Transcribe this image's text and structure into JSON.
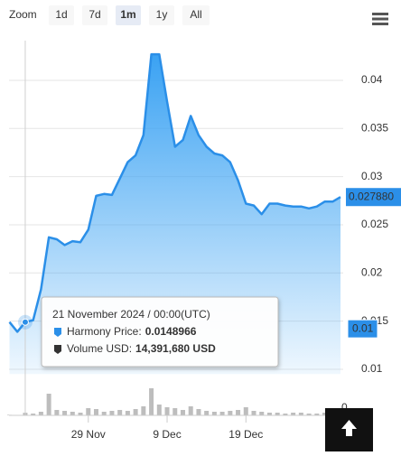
{
  "chart_data": {
    "type": "stock",
    "range_selector": {
      "label": "Zoom",
      "buttons": [
        "1d",
        "7d",
        "1m",
        "1y",
        "All"
      ],
      "selected": 2
    },
    "x": [
      "2024-11-19",
      "2024-11-20",
      "2024-11-21",
      "2024-11-22",
      "2024-11-23",
      "2024-11-24",
      "2024-11-25",
      "2024-11-26",
      "2024-11-27",
      "2024-11-28",
      "2024-11-29",
      "2024-11-30",
      "2024-12-01",
      "2024-12-02",
      "2024-12-03",
      "2024-12-04",
      "2024-12-05",
      "2024-12-06",
      "2024-12-07",
      "2024-12-08",
      "2024-12-09",
      "2024-12-10",
      "2024-12-11",
      "2024-12-12",
      "2024-12-13",
      "2024-12-14",
      "2024-12-15",
      "2024-12-16",
      "2024-12-17",
      "2024-12-18",
      "2024-12-19",
      "2024-12-20",
      "2024-12-21",
      "2024-12-22",
      "2024-12-23",
      "2024-12-24",
      "2024-12-25",
      "2024-12-26",
      "2024-12-27",
      "2024-12-28",
      "2024-12-29",
      "2024-12-30",
      "2024-12-31"
    ],
    "xlim": [
      "2024-11-19",
      "2024-12-31"
    ],
    "xticks": [
      {
        "value": "2024-11-29",
        "label": "29 Nov"
      },
      {
        "value": "2024-12-09",
        "label": "9 Dec"
      },
      {
        "value": "2024-12-19",
        "label": "19 Dec"
      }
    ],
    "series": [
      {
        "color": "#2b8fe8",
        "values": [
          0.0149,
          0.0139,
          0.0148966,
          0.0151,
          0.0183,
          0.0237,
          0.0235,
          0.0229,
          0.0233,
          0.0232,
          0.0245,
          0.028,
          0.0282,
          0.0281,
          0.0298,
          0.0315,
          0.0322,
          0.0343,
          0.0427,
          0.0427,
          0.0378,
          0.0331,
          0.0338,
          0.0363,
          0.0343,
          0.0331,
          0.0324,
          0.0322,
          0.0315,
          0.0296,
          0.0272,
          0.027,
          0.0261,
          0.0272,
          0.0272,
          0.027,
          0.0269,
          0.0269,
          0.0267,
          0.0269,
          0.0274,
          0.0274,
          0.02788
        ]
      },
      {
        "color": "#bdbdbd",
        "axis": "y2",
        "values": [
          3000000,
          2000000,
          14391680,
          10000000,
          20000000,
          120000000,
          30000000,
          25000000,
          20000000,
          15000000,
          40000000,
          35000000,
          20000000,
          25000000,
          30000000,
          25000000,
          35000000,
          50000000,
          150000000,
          60000000,
          45000000,
          40000000,
          30000000,
          50000000,
          35000000,
          25000000,
          20000000,
          20000000,
          25000000,
          30000000,
          45000000,
          25000000,
          20000000,
          15000000,
          15000000,
          10000000,
          15000000,
          15000000,
          10000000,
          10000000,
          15000000,
          20000000,
          10000000
        ]
      }
    ],
    "ylim": [
      0.0095,
      0.045
    ],
    "yticks": [
      0.01,
      0.015,
      0.02,
      0.025,
      0.03,
      0.035,
      0.04
    ],
    "y2lim": [
      0,
      200000000
    ],
    "y2ticks": [
      0
    ],
    "grid": true,
    "current_label": {
      "value": 0.02788,
      "label": "0.027880"
    },
    "crosshair_label": {
      "value": 0.0142,
      "label": "0.01"
    },
    "tooltip": {
      "x": "2024-11-21",
      "header": "21 November 2024 / 00:00(UTC)",
      "items": [
        {
          "name": "Harmony Price:",
          "value": {
            "value": 0.0148966,
            "label": "0.0148966"
          }
        },
        {
          "name": "Volume USD:",
          "value": {
            "value": 14391680,
            "label": "14,391,680 USD"
          }
        }
      ]
    }
  }
}
